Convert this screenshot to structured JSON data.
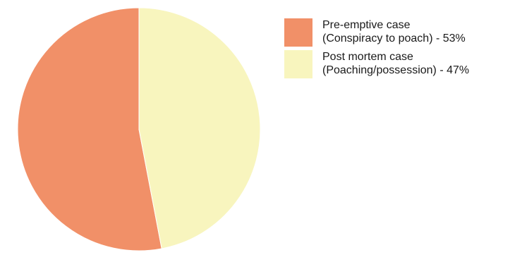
{
  "chart_data": {
    "type": "pie",
    "title": "",
    "slices": [
      {
        "label_line1": "Pre-emptive case",
        "label_line2": "(Conspiracy to poach) - 53%",
        "value": 53,
        "color": "#f19068"
      },
      {
        "label_line1": "Post mortem case",
        "label_line2": "(Poaching/possession) - 47%",
        "value": 47,
        "color": "#f8f5be"
      }
    ],
    "legend_position": "top-right"
  }
}
